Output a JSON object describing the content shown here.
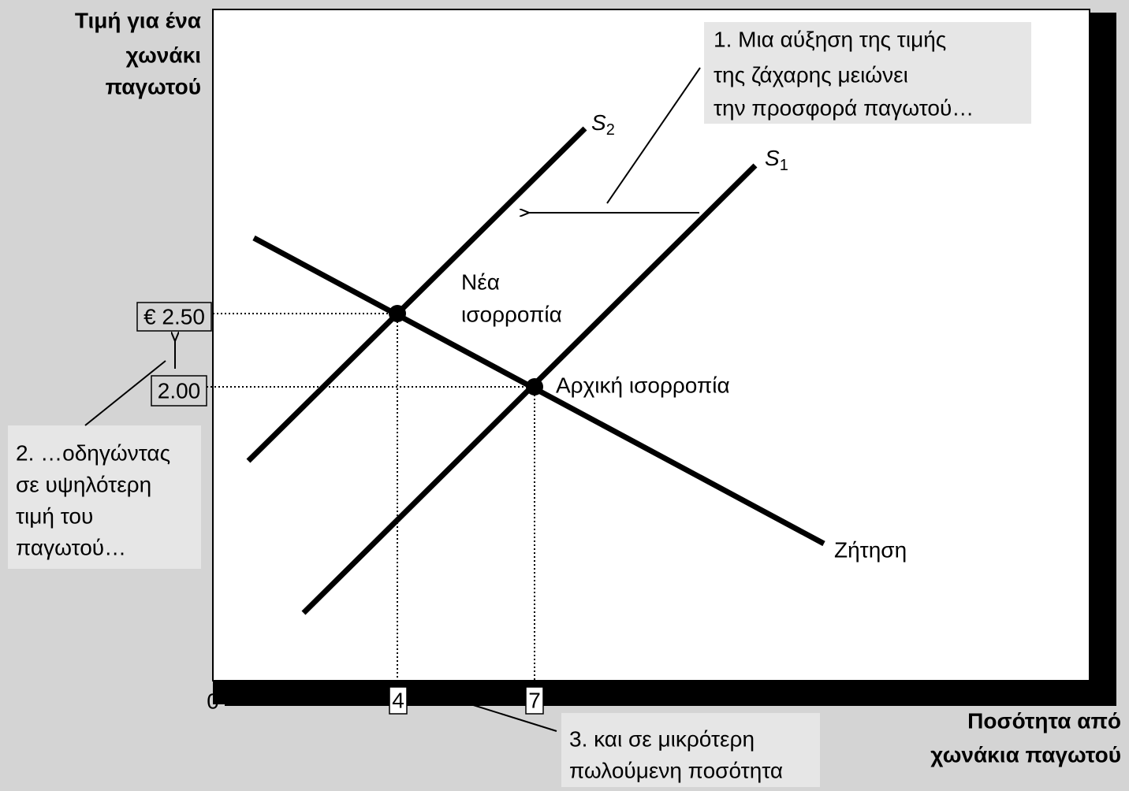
{
  "y_axis_label": [
    "Τιμή για ένα",
    "χωνάκι",
    "παγωτού"
  ],
  "x_axis_label": [
    "Ποσότητα από",
    "χωνάκια παγωτού"
  ],
  "origin": "0",
  "price_labels": [
    "€ 2.50",
    "2.00"
  ],
  "quantity_labels": [
    "4",
    "7"
  ],
  "supply_2": {
    "letter": "S",
    "subscript": "2"
  },
  "supply_1": {
    "letter": "S",
    "subscript": "1"
  },
  "demand": "Ζήτηση",
  "new_equilibrium": [
    "Νέα",
    "ισορροπία"
  ],
  "initial_equilibrium": "Αρχική ισορροπία",
  "callouts": [
    {
      "lines": [
        "1. Μια αύξηση της τιμής",
        "της ζάχαρης μειώνει",
        "την προσφορά παγωτού…"
      ]
    },
    {
      "lines": [
        "2. …οδηγώντας",
        "σε υψηλότερη",
        "τιμή του",
        "παγωτού…"
      ]
    },
    {
      "lines": [
        "3. και σε μικρότερη",
        "πωλούμενη ποσότητα"
      ]
    }
  ]
}
